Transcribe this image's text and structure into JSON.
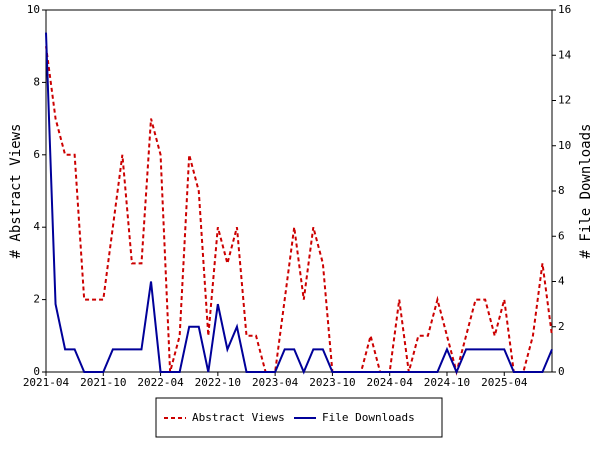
{
  "chart_data": {
    "type": "line",
    "categories": [
      "2021-04",
      null,
      null,
      null,
      null,
      null,
      "2021-10",
      null,
      null,
      null,
      null,
      null,
      "2022-04",
      null,
      null,
      null,
      null,
      null,
      "2022-10",
      null,
      null,
      null,
      null,
      null,
      "2023-04",
      null,
      null,
      null,
      null,
      null,
      "2023-10",
      null,
      null,
      null,
      null,
      null,
      "2024-04",
      null,
      null,
      null,
      null,
      null,
      "2024-10",
      null,
      null,
      null,
      null,
      null,
      "2025-04",
      null,
      null,
      null,
      null,
      null
    ],
    "series": [
      {
        "name": "Abstract Views",
        "color": "#cc0000",
        "dashed": true,
        "values": [
          9,
          7,
          6,
          6,
          2,
          2,
          2,
          4,
          6,
          3,
          3,
          7,
          6,
          0,
          1,
          6,
          5,
          1,
          4,
          3,
          4,
          1,
          1,
          0,
          0,
          2,
          4,
          2,
          4,
          3,
          0,
          0,
          0,
          0,
          1,
          0,
          0,
          2,
          0,
          1,
          1,
          2,
          1,
          0,
          1,
          2,
          2,
          1,
          2,
          0,
          0,
          1,
          3,
          1
        ]
      },
      {
        "name": "File Downloads",
        "color": "#000099",
        "axis": "y2",
        "values": [
          15,
          3,
          1,
          1,
          0,
          0,
          0,
          1,
          1,
          1,
          1,
          4,
          0,
          0,
          0,
          2,
          2,
          0,
          3,
          1,
          2,
          0,
          0,
          0,
          0,
          1,
          1,
          0,
          1,
          1,
          0,
          0,
          0,
          0,
          0,
          0,
          0,
          0,
          0,
          0,
          0,
          0,
          1,
          0,
          1,
          1,
          1,
          1,
          1,
          0,
          0,
          0,
          0,
          1
        ]
      }
    ],
    "ylabel": "# Abstract Views",
    "y2label": "# File Downloads",
    "ylim": [
      0,
      10
    ],
    "yticks": [
      0,
      2,
      4,
      6,
      8,
      10
    ],
    "y2lim": [
      0,
      16
    ],
    "y2ticks": [
      0,
      2,
      4,
      6,
      8,
      10,
      12,
      14,
      16
    ],
    "grid": false,
    "legend": "bottom"
  }
}
